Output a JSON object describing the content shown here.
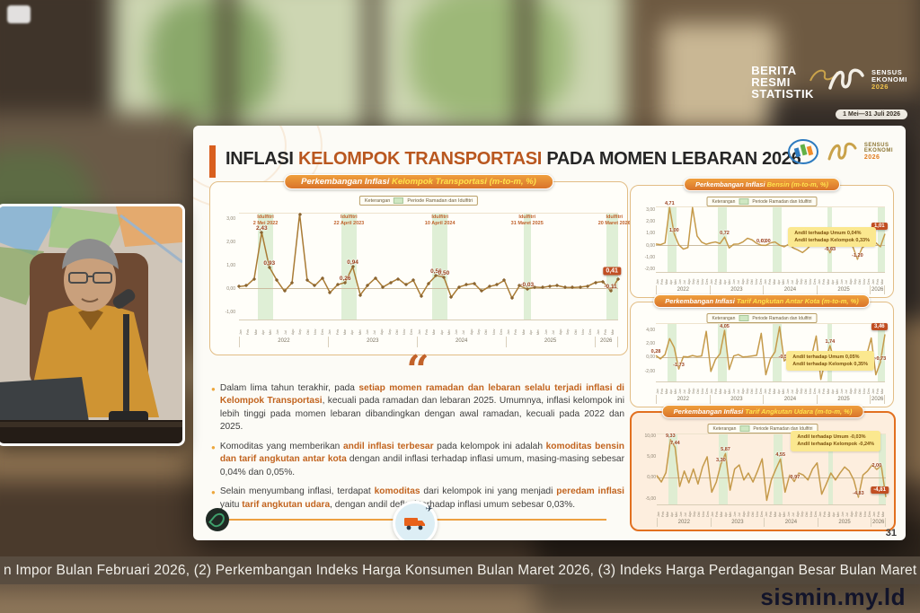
{
  "watermark": "sismin.my.ld",
  "ticker": "n Impor Bulan Februari 2026, (2) Perkembangan Indeks Harga Konsumen Bulan Maret 2026, (3) Indeks  Harga Perdagangan Besar Bulan Maret 2026, (4) Perke",
  "page_number": "31",
  "overlay": {
    "brs_lines": [
      "BERITA",
      "RESMI",
      "STATISTIK"
    ],
    "sensus_lines": [
      "SENSUS",
      "EKONOMI",
      "2026"
    ],
    "date_badge": "1 Mei—31 Juli 2026"
  },
  "header": {
    "title_part1": "INFLASI ",
    "title_highlight": "KELOMPOK TRANSPORTASI",
    "title_part2": " PADA MOMEN LEBARAN 2026",
    "sensus_line1": "SENSUS",
    "sensus_line2": "EKONOMI",
    "sensus_year": "2026"
  },
  "bullets": [
    {
      "segments": [
        {
          "t": "Dalam lima tahun terakhir, pada ",
          "hl": false
        },
        {
          "t": "setiap momen ramadan dan lebaran selalu terjadi inflasi di Kelompok Transportasi",
          "hl": true
        },
        {
          "t": ", kecuali pada ramadan dan lebaran 2025. Umumnya, inflasi kelompok ini lebih tinggi pada momen lebaran dibandingkan dengan awal ramadan, kecuali pada 2022 dan 2025.",
          "hl": false
        }
      ]
    },
    {
      "segments": [
        {
          "t": "Komoditas yang memberikan ",
          "hl": false
        },
        {
          "t": "andil inflasi terbesar",
          "hl": true
        },
        {
          "t": " pada kelompok ini adalah ",
          "hl": false
        },
        {
          "t": "komoditas bensin dan tarif angkutan antar kota",
          "hl": true
        },
        {
          "t": " dengan andil inflasi terhadap inflasi umum, masing-masing sebesar 0,04% dan 0,05%.",
          "hl": false
        }
      ]
    },
    {
      "segments": [
        {
          "t": "Selain menyumbang inflasi, terdapat ",
          "hl": false
        },
        {
          "t": "komoditas",
          "hl": true
        },
        {
          "t": " dari kelompok ini yang menjadi ",
          "hl": false
        },
        {
          "t": "peredam inflasi",
          "hl": true
        },
        {
          "t": " yaitu ",
          "hl": false
        },
        {
          "t": "tarif angkutan udara",
          "hl": true
        },
        {
          "t": ", dengan andil deflasi terhadap inflasi umum sebesar 0,03%.",
          "hl": false
        }
      ]
    }
  ],
  "chart_data": [
    {
      "type": "line",
      "title_prefix": "Perkembangan Inflasi ",
      "title_highlight": "Kelompok Transportasi",
      "title_suffix": " (m-to-m, %)",
      "legend_label": "Keterangan",
      "legend_band": "Periode Ramadan dan Idulfitri",
      "years": [
        "2022",
        "2023",
        "2024",
        "2025",
        "2026"
      ],
      "year_spans": [
        12,
        12,
        12,
        12,
        3
      ],
      "months": [
        "Jan",
        "Feb",
        "Mar",
        "Apr",
        "Mei",
        "Jun",
        "Jul",
        "Agu",
        "Sep",
        "Okt",
        "Nov",
        "Des"
      ],
      "ylim": [
        -1.35,
        3.25
      ],
      "yticks": [
        {
          "v": 3,
          "t": "3,00"
        },
        {
          "v": 2,
          "t": "2,00"
        },
        {
          "v": 1,
          "t": "1,00"
        },
        {
          "v": 0,
          "t": "0,00"
        },
        {
          "v": -1,
          "t": "-1,00"
        }
      ],
      "values": [
        0.08,
        0.12,
        0.42,
        2.43,
        0.93,
        0.35,
        -0.12,
        0.25,
        8.88,
        0.35,
        0.12,
        0.45,
        -0.18,
        0.16,
        0.26,
        0.94,
        -0.28,
        0.15,
        0.45,
        0.06,
        0.25,
        0.42,
        0.16,
        0.35,
        -0.32,
        0.22,
        0.56,
        0.5,
        -0.38,
        0.06,
        0.16,
        0.22,
        -0.12,
        0.08,
        0.16,
        0.35,
        -0.42,
        0.12,
        -0.03,
        0.06,
        0.04,
        0.1,
        0.12,
        0.05,
        0.04,
        0.06,
        0.1,
        0.26,
        0.3,
        -0.11,
        0.41
      ],
      "bands": [
        [
          3,
          4
        ],
        [
          14,
          15
        ],
        [
          26,
          27
        ],
        [
          38,
          38
        ],
        [
          49,
          50
        ]
      ],
      "annotations": [
        {
          "band": 0,
          "lines": [
            "Idulfitri",
            "2 Mei 2022"
          ]
        },
        {
          "band": 1,
          "lines": [
            "Idulfitri",
            "22 April 2023"
          ]
        },
        {
          "band": 2,
          "lines": [
            "Idulfitri",
            "10 April 2024"
          ]
        },
        {
          "band": 3,
          "lines": [
            "Idulfitri",
            "31 Maret 2025"
          ]
        },
        {
          "band": 4,
          "lines": [
            "Idulfitri",
            "20 Maret 2026"
          ]
        }
      ],
      "point_labels": [
        {
          "i": 3,
          "t": "2,43"
        },
        {
          "i": 4,
          "t": "0,93"
        },
        {
          "i": 14,
          "t": "0,26"
        },
        {
          "i": 15,
          "t": "0,94"
        },
        {
          "i": 26,
          "t": "0,56"
        },
        {
          "i": 27,
          "t": "0,50"
        },
        {
          "i": 38,
          "t": "-0,03"
        },
        {
          "i": 49,
          "t": "-0,11"
        }
      ],
      "final_box": {
        "i": 50,
        "t": "0,41"
      }
    },
    {
      "type": "line",
      "title_prefix": "Perkembangan Inflasi ",
      "title_highlight": "Bensin",
      "title_suffix": " (m-to-m, %)",
      "legend_label": "Keterangan",
      "legend_band": "Periode Ramadan dan Idulfitri",
      "years": [
        "2022",
        "2023",
        "2024",
        "2025",
        "2026"
      ],
      "year_spans": [
        12,
        12,
        12,
        12,
        3
      ],
      "months": [
        "Jan",
        "Feb",
        "Mar",
        "Apr",
        "Mei",
        "Jun",
        "Jul",
        "Agu",
        "Sep",
        "Okt",
        "Nov",
        "Des"
      ],
      "ylim": [
        -2.3,
        3.3
      ],
      "yticks": [
        {
          "v": 3,
          "t": "3,00"
        },
        {
          "v": 2,
          "t": "2,00"
        },
        {
          "v": 1,
          "t": "1,00"
        },
        {
          "v": 0,
          "t": "0,00"
        },
        {
          "v": -1,
          "t": "-1,00"
        },
        {
          "v": -2,
          "t": "-2,00"
        }
      ],
      "values": [
        0.12,
        0.06,
        0.22,
        4.71,
        1.0,
        0.06,
        -0.32,
        -0.18,
        8.0,
        0.82,
        0.28,
        0.1,
        0.22,
        0.3,
        0.16,
        0.72,
        -0.22,
        0.1,
        0.12,
        0.3,
        0.62,
        0.48,
        0.18,
        0.01,
        0.0,
        0.22,
        0.3,
        0.02,
        -0.12,
        0.1,
        -0.22,
        -0.4,
        -0.62,
        -0.3,
        0.1,
        0.2,
        0.0,
        0.12,
        -0.63,
        0.1,
        0.06,
        0.1,
        0.16,
        -0.12,
        -1.2,
        -0.22,
        0.1,
        0.06,
        0.22,
        -0.12,
        1.01
      ],
      "bands": [
        [
          3,
          4
        ],
        [
          14,
          15
        ],
        [
          26,
          27
        ],
        [
          38,
          38
        ],
        [
          49,
          50
        ]
      ],
      "point_labels": [
        {
          "i": 3,
          "t": "4,71"
        },
        {
          "i": 4,
          "t": "1,00"
        },
        {
          "i": 15,
          "t": "0,72"
        },
        {
          "i": 23,
          "t": "0,01"
        },
        {
          "i": 24,
          "t": "0,00"
        },
        {
          "i": 38,
          "t": "-0,63"
        },
        {
          "i": 44,
          "t": "-1,20"
        }
      ],
      "final_box": {
        "i": 50,
        "t": "1,01"
      },
      "note_lines": [
        "Andil terhadap Umum 0,04%",
        "Andil terhadap Kelompok 0,33%"
      ],
      "note_pos": "mid-right"
    },
    {
      "type": "line",
      "title_prefix": "Perkembangan Inflasi ",
      "title_highlight": "Tarif Angkutan Antar Kota",
      "title_suffix": " (m-to-m, %)",
      "legend_label": "Keterangan",
      "legend_band": "Periode Ramadan dan Idulfitri",
      "years": [
        "2022",
        "2023",
        "2024",
        "2025",
        "2026"
      ],
      "year_spans": [
        12,
        12,
        12,
        12,
        3
      ],
      "months": [
        "Jan",
        "Feb",
        "Mar",
        "Apr",
        "Mei",
        "Jun",
        "Jul",
        "Agu",
        "Sep",
        "Okt",
        "Nov",
        "Des"
      ],
      "ylim": [
        -3.6,
        5.0
      ],
      "yticks": [
        {
          "v": 4,
          "t": "4,00"
        },
        {
          "v": 2,
          "t": "2,00"
        },
        {
          "v": 0,
          "t": "0,00"
        },
        {
          "v": -2,
          "t": "-2,00"
        }
      ],
      "values": [
        0.28,
        -0.22,
        0.42,
        2.8,
        1.5,
        -1.73,
        0.12,
        0.06,
        0.28,
        0.12,
        0.22,
        3.9,
        -2.1,
        -0.32,
        0.52,
        4.05,
        -1.8,
        0.22,
        0.42,
        0.06,
        0.12,
        0.22,
        0.32,
        3.6,
        -2.6,
        -0.22,
        0.82,
        4.6,
        -0.53,
        0.12,
        0.22,
        0.12,
        0.02,
        0.12,
        0.22,
        3.2,
        -3.3,
        -0.42,
        1.74,
        -0.52,
        0.12,
        0.02,
        0.22,
        0.12,
        0.02,
        0.12,
        0.32,
        2.9,
        -2.6,
        -0.73,
        3.46
      ],
      "bands": [
        [
          3,
          4
        ],
        [
          14,
          15
        ],
        [
          26,
          27
        ],
        [
          38,
          38
        ],
        [
          49,
          50
        ]
      ],
      "point_labels": [
        {
          "i": 0,
          "t": "0,28"
        },
        {
          "i": 5,
          "t": "-1,73"
        },
        {
          "i": 15,
          "t": "4,05"
        },
        {
          "i": 28,
          "t": "-0,53"
        },
        {
          "i": 38,
          "t": "1,74"
        },
        {
          "i": 49,
          "t": "-0,73"
        }
      ],
      "final_box": {
        "i": 50,
        "t": "3,46"
      },
      "note_lines": [
        "Andil terhadap Umum 0,05%",
        "Andil terhadap Kelompok 0,35%"
      ],
      "note_pos": "bottom-right"
    },
    {
      "type": "line",
      "title_prefix": "Perkembangan Inflasi ",
      "title_highlight": "Tarif Angkutan Udara",
      "title_suffix": " (m-to-m, %)",
      "legend_label": "Keterangan",
      "legend_band": "Periode Ramadan dan Idulfitri",
      "years": [
        "2022",
        "2023",
        "2024",
        "2025",
        "2026"
      ],
      "year_spans": [
        12,
        12,
        12,
        12,
        3
      ],
      "months": [
        "Jan",
        "Feb",
        "Mar",
        "Apr",
        "Mei",
        "Jun",
        "Jul",
        "Agu",
        "Sep",
        "Okt",
        "Nov",
        "Des"
      ],
      "ylim": [
        -6.6,
        10.6
      ],
      "yticks": [
        {
          "v": 10,
          "t": "10,00"
        },
        {
          "v": 5,
          "t": "5,00"
        },
        {
          "v": 0,
          "t": "0,00"
        },
        {
          "v": -5,
          "t": "-5,00"
        }
      ],
      "values": [
        0.52,
        -1.1,
        1.2,
        9.33,
        7.44,
        -2.2,
        1.6,
        -1.3,
        2.1,
        -1.6,
        2.6,
        5.1,
        -3.6,
        -1.1,
        3.3,
        5.87,
        -3.1,
        2.1,
        3.1,
        -0.6,
        1.1,
        -1.1,
        1.6,
        4.6,
        -5.6,
        -0.6,
        2.1,
        4.55,
        -3.6,
        0.6,
        -0.97,
        1.1,
        0.6,
        -0.6,
        2.1,
        3.6,
        -4.1,
        -1.6,
        1.1,
        -0.6,
        1.1,
        2.6,
        1.6,
        -0.6,
        -4.83,
        0.6,
        1.6,
        3.1,
        2.0,
        2.9,
        -4.81
      ],
      "bands": [
        [
          3,
          4
        ],
        [
          14,
          15
        ],
        [
          26,
          27
        ],
        [
          38,
          38
        ],
        [
          49,
          50
        ]
      ],
      "point_labels": [
        {
          "i": 3,
          "t": "9,33"
        },
        {
          "i": 4,
          "t": "7,44"
        },
        {
          "i": 14,
          "t": "3,30"
        },
        {
          "i": 15,
          "t": "5,87"
        },
        {
          "i": 27,
          "t": "4,55"
        },
        {
          "i": 30,
          "t": "-0,97"
        },
        {
          "i": 44,
          "t": "-4,83"
        },
        {
          "i": 48,
          "t": "2,00"
        }
      ],
      "final_box": {
        "i": 50,
        "t": "-4,81"
      },
      "note_lines": [
        "Andil terhadap Umum -0,03%",
        "Andil terhadap Kelompok -0,24%"
      ],
      "note_pos": "top-right"
    }
  ]
}
